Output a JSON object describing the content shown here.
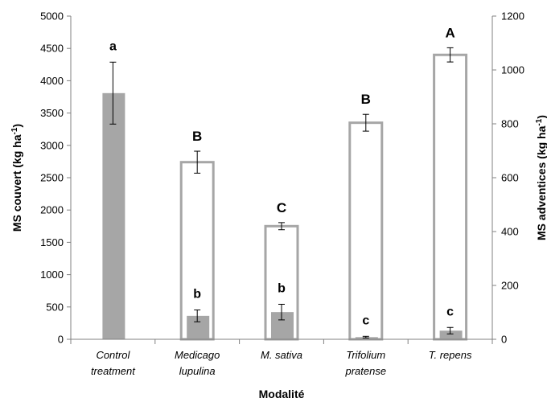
{
  "chart_data": {
    "type": "bar",
    "xlabel": "Modalité",
    "ylabel_left": "MS couvert (kg ha-1)",
    "ylabel_right": "MS adventices (kg ha-1)",
    "ylim_left": [
      0,
      5000
    ],
    "ylim_right": [
      0,
      1200
    ],
    "yticks_left": [
      "0",
      "500",
      "1000",
      "1500",
      "2000",
      "2500",
      "3000",
      "3500",
      "4000",
      "4500",
      "5000"
    ],
    "yticks_right": [
      "0",
      "200",
      "400",
      "600",
      "800",
      "1000",
      "1200"
    ],
    "categories": [
      [
        "Control",
        "treatment"
      ],
      [
        "Medicago",
        "lupulina"
      ],
      [
        "M. sativa"
      ],
      [
        "Trifolium",
        "pratense"
      ],
      [
        "T. repens"
      ]
    ],
    "series": [
      {
        "axis": "left",
        "style": "outline",
        "color": "#a6a6a6",
        "values": [
          null,
          2740,
          1750,
          3350,
          4400
        ],
        "errors": [
          null,
          170,
          55,
          130,
          110
        ],
        "labels": [
          "",
          "B",
          "C",
          "B",
          "A"
        ]
      },
      {
        "axis": "right",
        "style": "filled",
        "color": "#a6a6a6",
        "values": [
          914,
          87,
          101,
          8,
          32
        ],
        "errors": [
          115,
          22,
          29,
          3,
          12
        ],
        "labels": [
          "a",
          "b",
          "b",
          "c",
          "c"
        ]
      }
    ],
    "grid": false,
    "legend": "none"
  }
}
